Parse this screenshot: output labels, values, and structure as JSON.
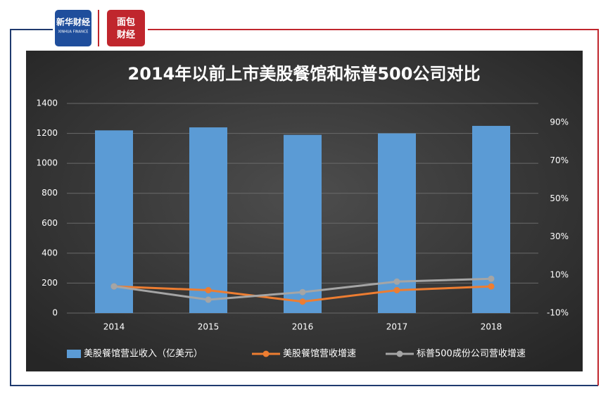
{
  "logos": {
    "brand": "新华财经",
    "brand_en": "XINHUA FINANCE",
    "second_top": "面包",
    "second_bottom": "财经"
  },
  "chart_data": {
    "type": "bar",
    "title": "2014年以前上市美股餐馆和标普500公司对比",
    "categories": [
      "2014",
      "2015",
      "2016",
      "2017",
      "2018"
    ],
    "series": [
      {
        "name": "美股餐馆营业收入（亿美元）",
        "type": "bar",
        "color": "#5b9bd5",
        "values": [
          1220,
          1240,
          1190,
          1200,
          1250
        ]
      },
      {
        "name": "美股餐馆营收增速",
        "type": "line",
        "axis": "y2",
        "color": "#ed7d31",
        "values": [
          4,
          2,
          -4,
          2,
          4
        ]
      },
      {
        "name": "标普500成份公司营收增速",
        "type": "line",
        "axis": "y2",
        "color": "#a5a5a5",
        "values": [
          4,
          -3,
          1,
          6.5,
          8
        ]
      }
    ],
    "ylim": [
      0,
      1400
    ],
    "yticks": [
      0,
      200,
      400,
      600,
      800,
      1000,
      1200,
      1400
    ],
    "y2lim": [
      -10,
      100
    ],
    "y2ticks": [
      {
        "value": -10,
        "label": "-10%"
      },
      {
        "value": 10,
        "label": "10%"
      },
      {
        "value": 30,
        "label": "30%"
      },
      {
        "value": 50,
        "label": "50%"
      },
      {
        "value": 70,
        "label": "70%"
      },
      {
        "value": 90,
        "label": "90%"
      }
    ],
    "grid": true,
    "legend": "bottom"
  }
}
